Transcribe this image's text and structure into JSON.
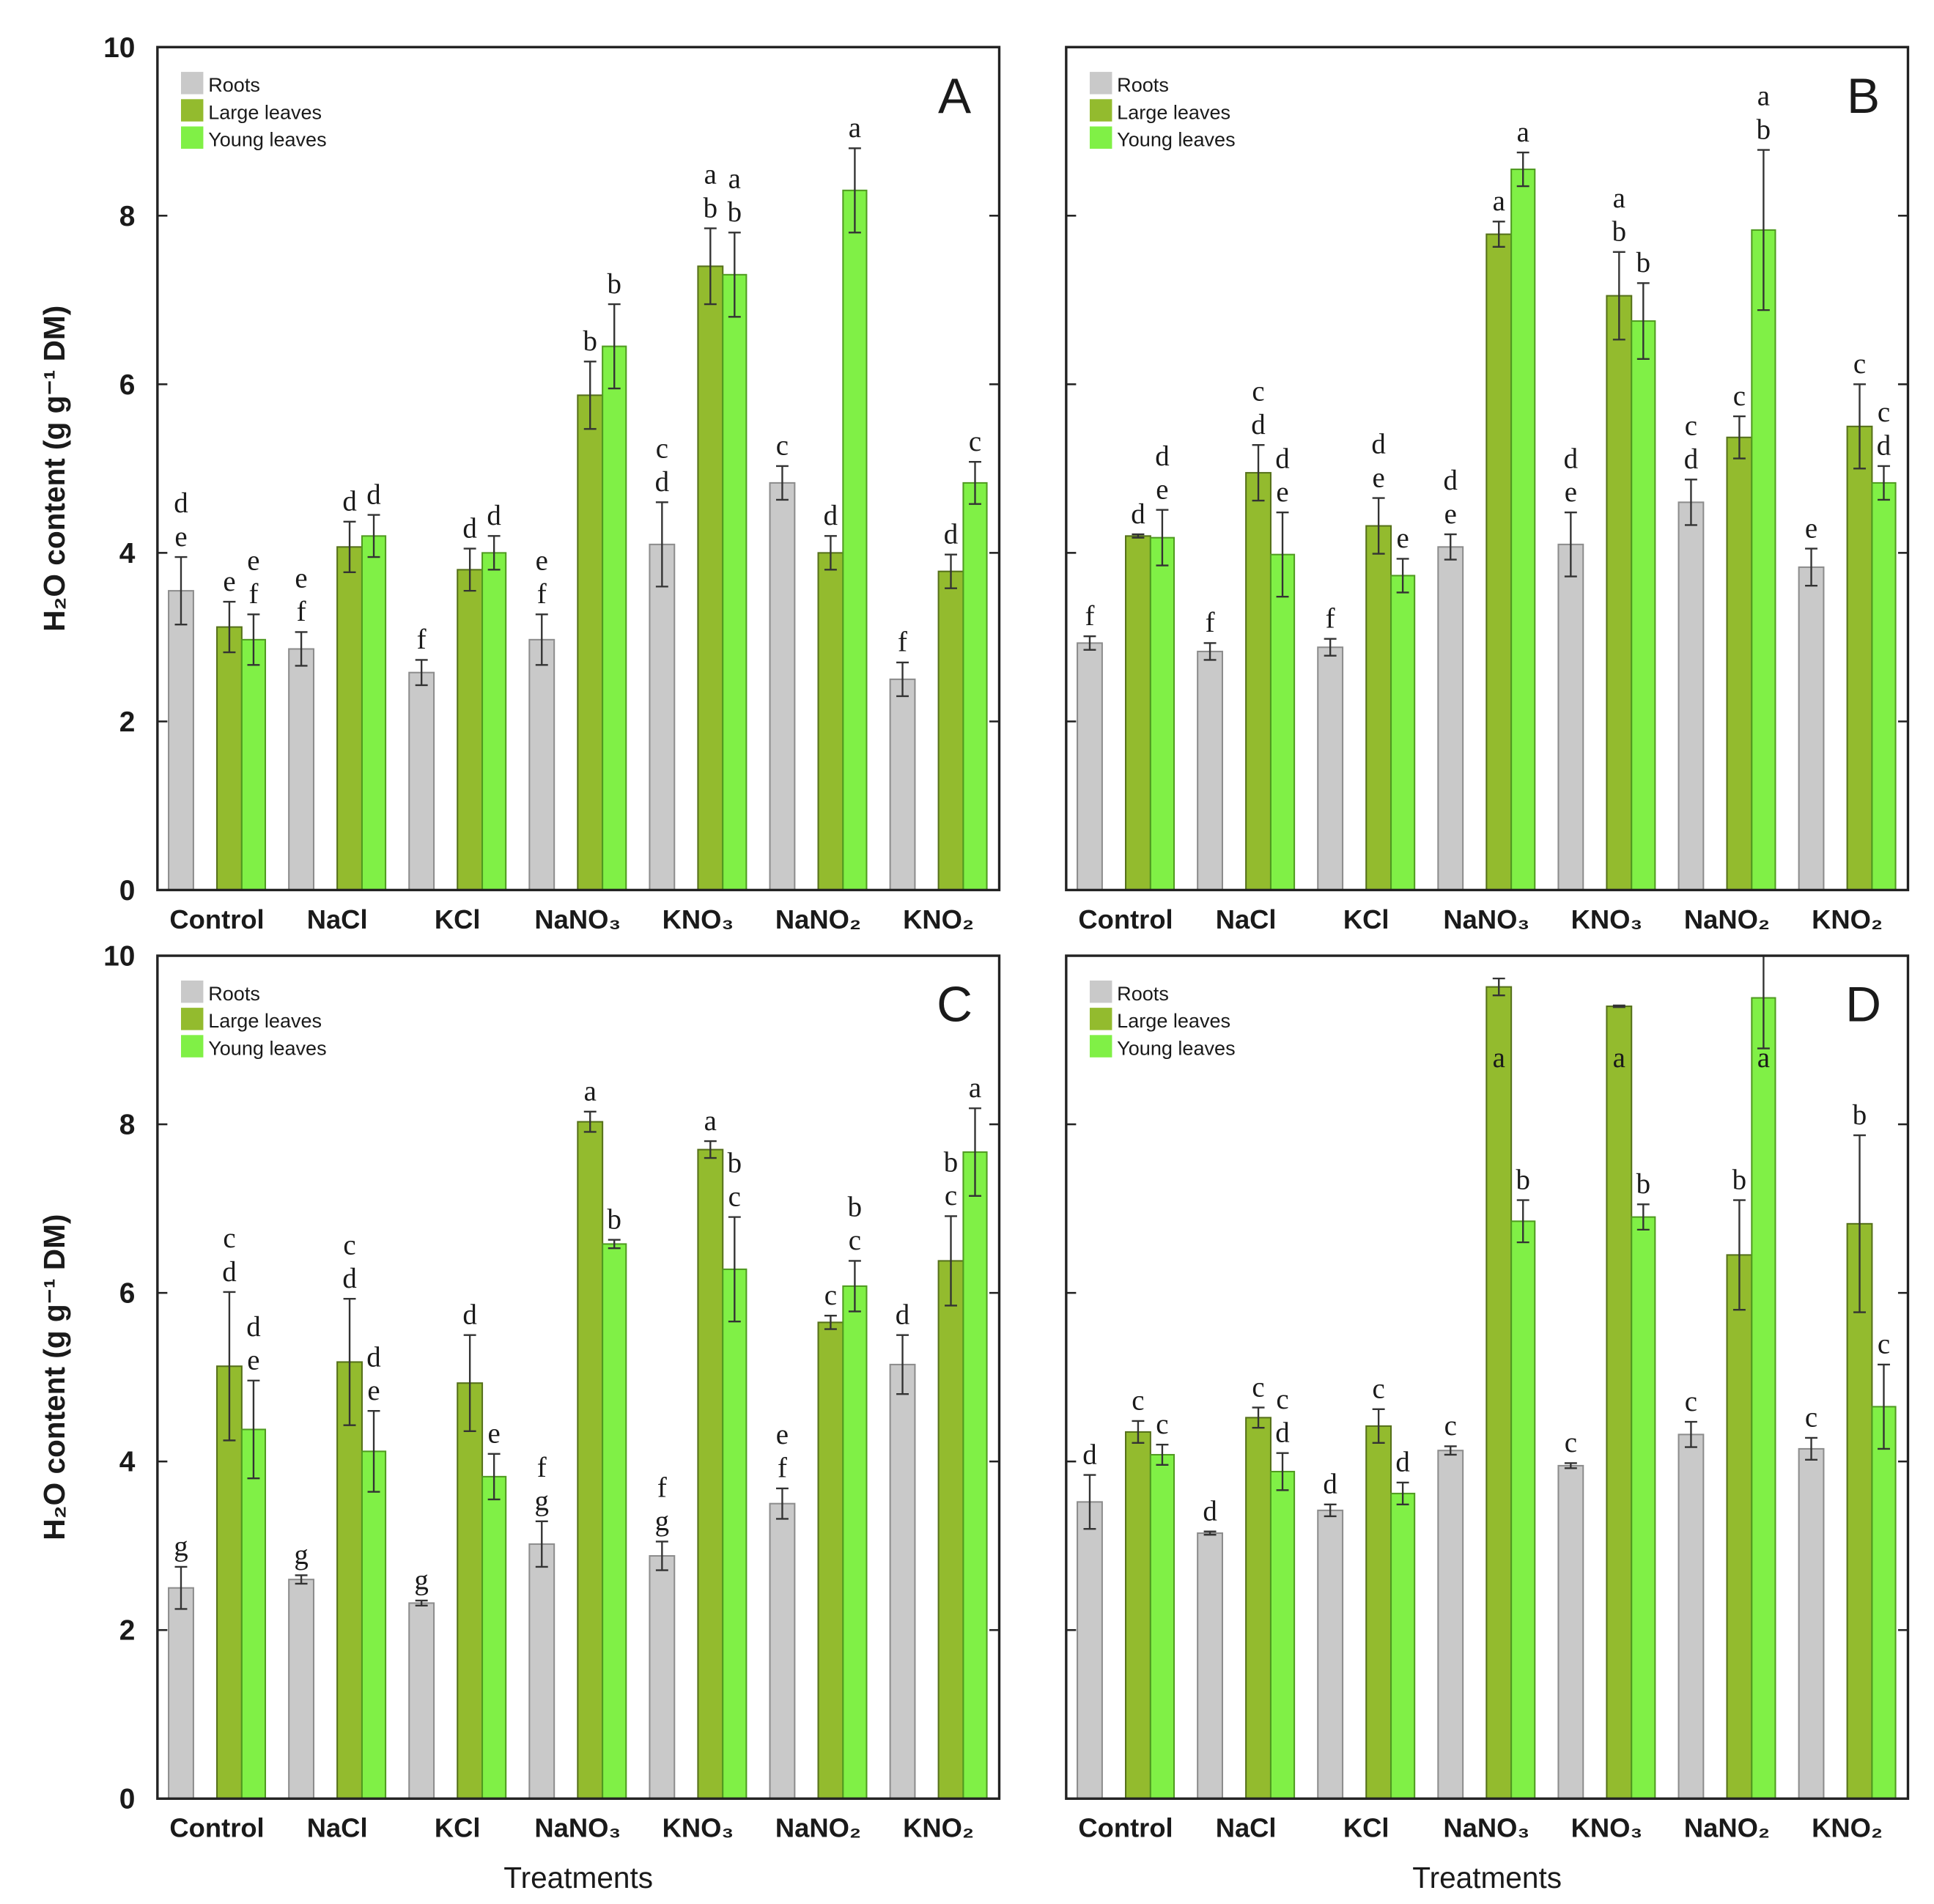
{
  "colors": {
    "axis": "#222222",
    "error": "#333333",
    "series": [
      {
        "fill": "#c9c9c9",
        "stroke": "#8c8c8c"
      },
      {
        "fill": "#93bb2e",
        "stroke": "#55701a"
      },
      {
        "fill": "#80f046",
        "stroke": "#4f9a20"
      }
    ]
  },
  "chart_data": [
    {
      "type": "bar",
      "panel": "A",
      "ylabel": "H₂O content (g g⁻¹ DM)",
      "categories": [
        "Control",
        "NaCl",
        "KCl",
        "NaNO₃",
        "KNO₃",
        "NaNO₂",
        "KNO₂"
      ],
      "ylim": [
        0,
        10
      ],
      "yticks": [
        0,
        2,
        4,
        6,
        8,
        10
      ],
      "ytick_labels": [
        "0",
        "2",
        "4",
        "6",
        "8",
        "10"
      ],
      "legend_position": "top-left",
      "series": [
        {
          "name": "Roots",
          "values": [
            3.55,
            2.86,
            2.58,
            2.97,
            4.1,
            4.83,
            2.5
          ],
          "errors": [
            0.4,
            0.2,
            0.15,
            0.3,
            0.5,
            0.2,
            0.2
          ],
          "letters": [
            [
              "d",
              "e"
            ],
            [
              "e",
              "f"
            ],
            [
              "f"
            ],
            [
              "e",
              "f"
            ],
            [
              "c",
              "d"
            ],
            [
              "c"
            ],
            [
              "f"
            ]
          ]
        },
        {
          "name": "Large leaves",
          "values": [
            3.12,
            4.07,
            3.8,
            5.87,
            7.4,
            4.0,
            3.78
          ],
          "errors": [
            0.3,
            0.3,
            0.25,
            0.4,
            0.45,
            0.2,
            0.2
          ],
          "letters": [
            [
              "e"
            ],
            [
              "d"
            ],
            [
              "d"
            ],
            [
              "b"
            ],
            [
              "a",
              "b"
            ],
            [
              "d"
            ],
            [
              "d"
            ]
          ]
        },
        {
          "name": "Young leaves",
          "values": [
            2.97,
            4.2,
            4.0,
            6.45,
            7.3,
            8.3,
            4.83
          ],
          "errors": [
            0.3,
            0.25,
            0.2,
            0.5,
            0.5,
            0.5,
            0.25
          ],
          "letters": [
            [
              "e",
              "f"
            ],
            [
              "d"
            ],
            [
              "d"
            ],
            [
              "b"
            ],
            [
              "a",
              "b"
            ],
            [
              "a"
            ],
            [
              "c"
            ]
          ]
        }
      ]
    },
    {
      "type": "bar",
      "panel": "B",
      "categories": [
        "Control",
        "NaCl",
        "KCl",
        "NaNO₃",
        "KNO₃",
        "NaNO₂",
        "KNO₂"
      ],
      "ylim": [
        0,
        10
      ],
      "yticks": [
        0,
        2,
        4,
        6,
        8,
        10
      ],
      "ytick_labels": [],
      "legend_position": "top-left",
      "series": [
        {
          "name": "Roots",
          "values": [
            2.93,
            2.83,
            2.88,
            4.07,
            4.1,
            4.6,
            3.83
          ],
          "errors": [
            0.08,
            0.1,
            0.1,
            0.15,
            0.38,
            0.27,
            0.22
          ],
          "letters": [
            [
              "f"
            ],
            [
              "f"
            ],
            [
              "f"
            ],
            [
              "d",
              "e"
            ],
            [
              "d",
              "e"
            ],
            [
              "c",
              "d"
            ],
            [
              "e"
            ]
          ]
        },
        {
          "name": "Large leaves",
          "values": [
            4.2,
            4.95,
            4.32,
            7.78,
            7.05,
            5.37,
            5.5
          ],
          "errors": [
            0.02,
            0.33,
            0.33,
            0.15,
            0.52,
            0.25,
            0.5
          ],
          "letters": [
            [
              "d"
            ],
            [
              "c",
              "d"
            ],
            [
              "d",
              "e"
            ],
            [
              "a"
            ],
            [
              "a",
              "b"
            ],
            [
              "c"
            ],
            [
              "c"
            ]
          ]
        },
        {
          "name": "Young leaves",
          "values": [
            4.18,
            3.98,
            3.73,
            8.55,
            6.75,
            7.83,
            4.83
          ],
          "errors": [
            0.33,
            0.5,
            0.2,
            0.2,
            0.45,
            0.95,
            0.2
          ],
          "letters": [
            [
              "d",
              "e"
            ],
            [
              "d",
              "e"
            ],
            [
              "e"
            ],
            [
              "a"
            ],
            [
              "b"
            ],
            [
              "a",
              "b"
            ],
            [
              "c",
              "d"
            ]
          ]
        }
      ]
    },
    {
      "type": "bar",
      "panel": "C",
      "ylabel": "H₂O content (g g⁻¹ DM)",
      "xlabel": "Treatments",
      "categories": [
        "Control",
        "NaCl",
        "KCl",
        "NaNO₃",
        "KNO₃",
        "NaNO₂",
        "KNO₂"
      ],
      "ylim": [
        0,
        10
      ],
      "yticks": [
        0,
        2,
        4,
        6,
        8,
        10
      ],
      "ytick_labels": [
        "0",
        "2",
        "4",
        "6",
        "8",
        "10"
      ],
      "legend_position": "top-left",
      "series": [
        {
          "name": "Roots",
          "values": [
            2.5,
            2.6,
            2.32,
            3.02,
            2.88,
            3.5,
            5.15
          ],
          "errors": [
            0.25,
            0.05,
            0.03,
            0.27,
            0.17,
            0.18,
            0.35
          ],
          "letters": [
            [
              "g"
            ],
            [
              "g"
            ],
            [
              "g"
            ],
            [
              "f",
              "g"
            ],
            [
              "f",
              "g"
            ],
            [
              "e",
              "f"
            ],
            [
              "d"
            ]
          ]
        },
        {
          "name": "Large leaves",
          "values": [
            5.13,
            5.18,
            4.93,
            8.03,
            7.7,
            5.65,
            6.38
          ],
          "errors": [
            0.88,
            0.75,
            0.57,
            0.12,
            0.1,
            0.08,
            0.53
          ],
          "letters": [
            [
              "c",
              "d"
            ],
            [
              "c",
              "d"
            ],
            [
              "d"
            ],
            [
              "a"
            ],
            [
              "a"
            ],
            [
              "c"
            ],
            [
              "b",
              "c"
            ]
          ]
        },
        {
          "name": "Young leaves",
          "values": [
            4.38,
            4.12,
            3.82,
            6.58,
            6.28,
            6.08,
            7.67
          ],
          "errors": [
            0.58,
            0.48,
            0.27,
            0.05,
            0.62,
            0.3,
            0.52
          ],
          "letters": [
            [
              "d",
              "e"
            ],
            [
              "d",
              "e"
            ],
            [
              "e"
            ],
            [
              "b"
            ],
            [
              "b",
              "c"
            ],
            [
              "b",
              "c"
            ],
            [
              "a"
            ]
          ]
        }
      ]
    },
    {
      "type": "bar",
      "panel": "D",
      "xlabel": "Treatments",
      "categories": [
        "Control",
        "NaCl",
        "KCl",
        "NaNO₃",
        "KNO₃",
        "NaNO₂",
        "KNO₂"
      ],
      "ylim": [
        0,
        10
      ],
      "yticks": [
        0,
        2,
        4,
        6,
        8,
        10
      ],
      "ytick_labels": [],
      "legend_position": "top-left",
      "series": [
        {
          "name": "Roots",
          "values": [
            3.52,
            3.15,
            3.42,
            4.13,
            3.95,
            4.32,
            4.15
          ],
          "errors": [
            0.32,
            0.02,
            0.07,
            0.05,
            0.03,
            0.15,
            0.13
          ],
          "letters": [
            [
              "d"
            ],
            [
              "d"
            ],
            [
              "d"
            ],
            [
              "c"
            ],
            [
              "c"
            ],
            [
              "c"
            ],
            [
              "c"
            ]
          ]
        },
        {
          "name": "Large leaves",
          "values": [
            4.35,
            4.52,
            4.42,
            9.63,
            9.4,
            6.45,
            6.82
          ],
          "errors": [
            0.13,
            0.12,
            0.2,
            0.1,
            0.01,
            0.65,
            1.05
          ],
          "letters": [
            [
              "c"
            ],
            [
              "c"
            ],
            [
              "c"
            ],
            [
              "a"
            ],
            [
              "a"
            ],
            [
              "b"
            ],
            [
              "b"
            ]
          ]
        },
        {
          "name": "Young leaves",
          "values": [
            4.08,
            3.88,
            3.62,
            6.85,
            6.9,
            9.5,
            4.65
          ],
          "errors": [
            0.12,
            0.22,
            0.13,
            0.25,
            0.15,
            0.6,
            0.5
          ],
          "letters": [
            [
              "c"
            ],
            [
              "c",
              "d"
            ],
            [
              "d"
            ],
            [
              "b"
            ],
            [
              "b"
            ],
            [
              "a"
            ],
            [
              "c"
            ]
          ]
        }
      ]
    }
  ]
}
